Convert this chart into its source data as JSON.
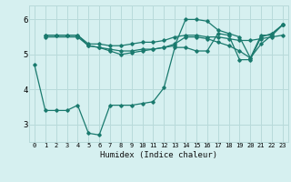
{
  "xlabel": "Humidex (Indice chaleur)",
  "bg_color": "#d6f0f0",
  "grid_color": "#b8dada",
  "line_color": "#1a7a6e",
  "xlim": [
    -0.5,
    23.5
  ],
  "ylim": [
    2.5,
    6.4
  ],
  "yticks": [
    3,
    4,
    5,
    6
  ],
  "xticks": [
    0,
    1,
    2,
    3,
    4,
    5,
    6,
    7,
    8,
    9,
    10,
    11,
    12,
    13,
    14,
    15,
    16,
    17,
    18,
    19,
    20,
    21,
    22,
    23
  ],
  "lines": [
    {
      "x": [
        0,
        1,
        2,
        3,
        4,
        5,
        6,
        7,
        8,
        9,
        10,
        11,
        12,
        13,
        14,
        15,
        16,
        17,
        18,
        19,
        20,
        21,
        22,
        23
      ],
      "y": [
        4.7,
        3.4,
        3.4,
        3.4,
        3.55,
        2.75,
        2.7,
        3.55,
        3.55,
        3.55,
        3.6,
        3.65,
        4.05,
        5.2,
        5.2,
        5.1,
        5.1,
        5.6,
        5.55,
        4.85,
        4.85,
        5.5,
        5.6,
        5.85
      ]
    },
    {
      "x": [
        1,
        2,
        3,
        4,
        5,
        6,
        7,
        8,
        9,
        10,
        11,
        12,
        13,
        14,
        15,
        16,
        17,
        18,
        19,
        20,
        21,
        22,
        23
      ],
      "y": [
        5.55,
        5.55,
        5.55,
        5.55,
        5.3,
        5.3,
        5.25,
        5.25,
        5.3,
        5.35,
        5.35,
        5.4,
        5.5,
        5.55,
        5.55,
        5.5,
        5.5,
        5.45,
        5.4,
        5.4,
        5.45,
        5.5,
        5.55
      ]
    },
    {
      "x": [
        1,
        2,
        3,
        4,
        5,
        6,
        7,
        8,
        9,
        10,
        11,
        12,
        13,
        14,
        15,
        16,
        17,
        18,
        19,
        20,
        21,
        22,
        23
      ],
      "y": [
        5.55,
        5.55,
        5.55,
        5.55,
        5.25,
        5.2,
        5.15,
        5.1,
        5.1,
        5.15,
        5.15,
        5.2,
        5.25,
        6.0,
        6.0,
        5.95,
        5.7,
        5.6,
        5.5,
        4.9,
        5.55,
        5.55,
        5.85
      ]
    },
    {
      "x": [
        1,
        4,
        5,
        6,
        7,
        8,
        9,
        10,
        11,
        12,
        13,
        14,
        15,
        16,
        17,
        18,
        19,
        20,
        21,
        22,
        23
      ],
      "y": [
        5.5,
        5.5,
        5.25,
        5.2,
        5.1,
        5.0,
        5.05,
        5.1,
        5.15,
        5.2,
        5.3,
        5.5,
        5.5,
        5.45,
        5.35,
        5.25,
        5.1,
        4.9,
        5.3,
        5.55,
        5.85
      ]
    }
  ]
}
